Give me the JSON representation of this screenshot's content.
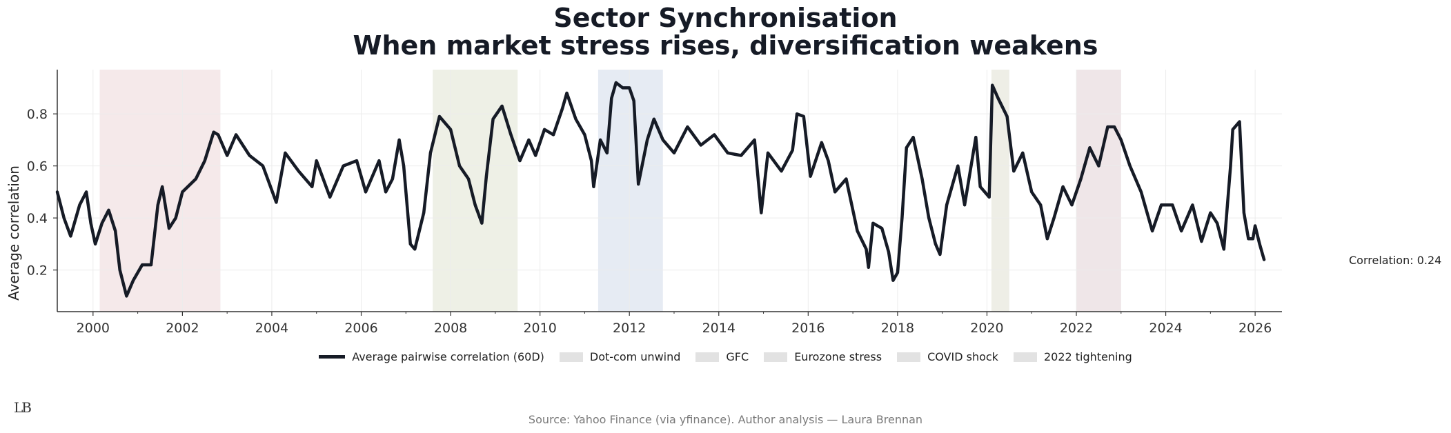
{
  "chart_data": {
    "type": "line",
    "title": "Sector Synchronisation",
    "subtitle": "When market stress rises, diversification weakens",
    "xlabel": "",
    "ylabel": "Average correlation",
    "xlim": [
      1999.2,
      2026.6
    ],
    "ylim": [
      0.04,
      0.97
    ],
    "x_ticks": [
      2000,
      2002,
      2004,
      2006,
      2008,
      2010,
      2012,
      2014,
      2016,
      2018,
      2020,
      2022,
      2024,
      2026
    ],
    "x_tick_labels": [
      "2000",
      "2002",
      "2004",
      "2006",
      "2008",
      "2010",
      "2012",
      "2014",
      "2016",
      "2018",
      "2020",
      "2022",
      "2024",
      "2026"
    ],
    "y_ticks": [
      0.2,
      0.4,
      0.6,
      0.8
    ],
    "y_tick_labels": [
      "0.2",
      "0.4",
      "0.6",
      "0.8"
    ],
    "grid": true,
    "series": [
      {
        "name": "Average pairwise correlation (60D)",
        "color": "#161b26",
        "points": [
          [
            1999.2,
            0.5
          ],
          [
            1999.35,
            0.4
          ],
          [
            1999.5,
            0.33
          ],
          [
            1999.7,
            0.45
          ],
          [
            1999.85,
            0.5
          ],
          [
            1999.95,
            0.38
          ],
          [
            2000.05,
            0.3
          ],
          [
            2000.2,
            0.38
          ],
          [
            2000.35,
            0.43
          ],
          [
            2000.5,
            0.35
          ],
          [
            2000.6,
            0.2
          ],
          [
            2000.75,
            0.1
          ],
          [
            2000.9,
            0.16
          ],
          [
            2001.1,
            0.22
          ],
          [
            2001.3,
            0.22
          ],
          [
            2001.45,
            0.45
          ],
          [
            2001.55,
            0.52
          ],
          [
            2001.7,
            0.36
          ],
          [
            2001.85,
            0.4
          ],
          [
            2002.0,
            0.5
          ],
          [
            2002.3,
            0.55
          ],
          [
            2002.5,
            0.62
          ],
          [
            2002.7,
            0.73
          ],
          [
            2002.8,
            0.72
          ],
          [
            2003.0,
            0.64
          ],
          [
            2003.2,
            0.72
          ],
          [
            2003.5,
            0.64
          ],
          [
            2003.8,
            0.6
          ],
          [
            2004.1,
            0.46
          ],
          [
            2004.3,
            0.65
          ],
          [
            2004.6,
            0.58
          ],
          [
            2004.9,
            0.52
          ],
          [
            2005.0,
            0.62
          ],
          [
            2005.3,
            0.48
          ],
          [
            2005.6,
            0.6
          ],
          [
            2005.9,
            0.62
          ],
          [
            2006.1,
            0.5
          ],
          [
            2006.4,
            0.62
          ],
          [
            2006.55,
            0.5
          ],
          [
            2006.7,
            0.55
          ],
          [
            2006.85,
            0.7
          ],
          [
            2006.95,
            0.6
          ],
          [
            2007.1,
            0.3
          ],
          [
            2007.2,
            0.28
          ],
          [
            2007.4,
            0.42
          ],
          [
            2007.55,
            0.65
          ],
          [
            2007.75,
            0.79
          ],
          [
            2008.0,
            0.74
          ],
          [
            2008.2,
            0.6
          ],
          [
            2008.4,
            0.55
          ],
          [
            2008.55,
            0.45
          ],
          [
            2008.7,
            0.38
          ],
          [
            2008.8,
            0.56
          ],
          [
            2008.95,
            0.78
          ],
          [
            2009.15,
            0.83
          ],
          [
            2009.35,
            0.72
          ],
          [
            2009.55,
            0.62
          ],
          [
            2009.75,
            0.7
          ],
          [
            2009.9,
            0.64
          ],
          [
            2010.1,
            0.74
          ],
          [
            2010.3,
            0.72
          ],
          [
            2010.5,
            0.82
          ],
          [
            2010.6,
            0.88
          ],
          [
            2010.8,
            0.78
          ],
          [
            2011.0,
            0.72
          ],
          [
            2011.15,
            0.62
          ],
          [
            2011.2,
            0.52
          ],
          [
            2011.35,
            0.7
          ],
          [
            2011.5,
            0.65
          ],
          [
            2011.6,
            0.86
          ],
          [
            2011.7,
            0.92
          ],
          [
            2011.85,
            0.9
          ],
          [
            2012.0,
            0.9
          ],
          [
            2012.1,
            0.85
          ],
          [
            2012.2,
            0.53
          ],
          [
            2012.4,
            0.7
          ],
          [
            2012.55,
            0.78
          ],
          [
            2012.75,
            0.7
          ],
          [
            2013.0,
            0.65
          ],
          [
            2013.3,
            0.75
          ],
          [
            2013.6,
            0.68
          ],
          [
            2013.9,
            0.72
          ],
          [
            2014.2,
            0.65
          ],
          [
            2014.5,
            0.64
          ],
          [
            2014.8,
            0.7
          ],
          [
            2014.95,
            0.42
          ],
          [
            2015.1,
            0.65
          ],
          [
            2015.4,
            0.58
          ],
          [
            2015.65,
            0.66
          ],
          [
            2015.75,
            0.8
          ],
          [
            2015.9,
            0.79
          ],
          [
            2016.05,
            0.56
          ],
          [
            2016.3,
            0.69
          ],
          [
            2016.45,
            0.62
          ],
          [
            2016.6,
            0.5
          ],
          [
            2016.85,
            0.55
          ],
          [
            2017.1,
            0.35
          ],
          [
            2017.3,
            0.28
          ],
          [
            2017.35,
            0.21
          ],
          [
            2017.45,
            0.38
          ],
          [
            2017.65,
            0.36
          ],
          [
            2017.8,
            0.27
          ],
          [
            2017.9,
            0.16
          ],
          [
            2018.0,
            0.19
          ],
          [
            2018.1,
            0.4
          ],
          [
            2018.2,
            0.67
          ],
          [
            2018.35,
            0.71
          ],
          [
            2018.55,
            0.55
          ],
          [
            2018.7,
            0.4
          ],
          [
            2018.85,
            0.3
          ],
          [
            2018.95,
            0.26
          ],
          [
            2019.1,
            0.45
          ],
          [
            2019.35,
            0.6
          ],
          [
            2019.5,
            0.45
          ],
          [
            2019.75,
            0.71
          ],
          [
            2019.85,
            0.52
          ],
          [
            2020.05,
            0.48
          ],
          [
            2020.12,
            0.91
          ],
          [
            2020.25,
            0.86
          ],
          [
            2020.45,
            0.79
          ],
          [
            2020.6,
            0.58
          ],
          [
            2020.8,
            0.65
          ],
          [
            2021.0,
            0.5
          ],
          [
            2021.2,
            0.45
          ],
          [
            2021.35,
            0.32
          ],
          [
            2021.5,
            0.4
          ],
          [
            2021.7,
            0.52
          ],
          [
            2021.9,
            0.45
          ],
          [
            2022.1,
            0.55
          ],
          [
            2022.3,
            0.67
          ],
          [
            2022.5,
            0.6
          ],
          [
            2022.7,
            0.75
          ],
          [
            2022.85,
            0.75
          ],
          [
            2023.0,
            0.7
          ],
          [
            2023.2,
            0.6
          ],
          [
            2023.45,
            0.5
          ],
          [
            2023.7,
            0.35
          ],
          [
            2023.9,
            0.45
          ],
          [
            2024.15,
            0.45
          ],
          [
            2024.35,
            0.35
          ],
          [
            2024.6,
            0.45
          ],
          [
            2024.8,
            0.31
          ],
          [
            2025.0,
            0.42
          ],
          [
            2025.15,
            0.38
          ],
          [
            2025.3,
            0.28
          ],
          [
            2025.45,
            0.6
          ],
          [
            2025.5,
            0.74
          ],
          [
            2025.65,
            0.77
          ],
          [
            2025.75,
            0.42
          ],
          [
            2025.85,
            0.32
          ],
          [
            2025.95,
            0.32
          ],
          [
            2026.0,
            0.37
          ],
          [
            2026.1,
            0.3
          ],
          [
            2026.2,
            0.24
          ]
        ]
      }
    ],
    "shaded_periods": [
      {
        "name": "Dot-com unwind",
        "start": 2000.15,
        "end": 2002.85,
        "color": "#f5e9ea"
      },
      {
        "name": "GFC",
        "start": 2007.6,
        "end": 2009.5,
        "color": "#eef0e6"
      },
      {
        "name": "Eurozone stress",
        "start": 2011.3,
        "end": 2012.75,
        "color": "#e6ebf3"
      },
      {
        "name": "COVID shock",
        "start": 2020.1,
        "end": 2020.5,
        "color": "#eeeee6"
      },
      {
        "name": "2022 tightening",
        "start": 2022.0,
        "end": 2023.0,
        "color": "#efe6e8"
      }
    ],
    "legend_position": "bottom-center",
    "annotation": "Correlation: 0.24",
    "source": "Source: Yahoo Finance (via yfinance). Author analysis — Laura Brennan",
    "logo": "LB"
  }
}
